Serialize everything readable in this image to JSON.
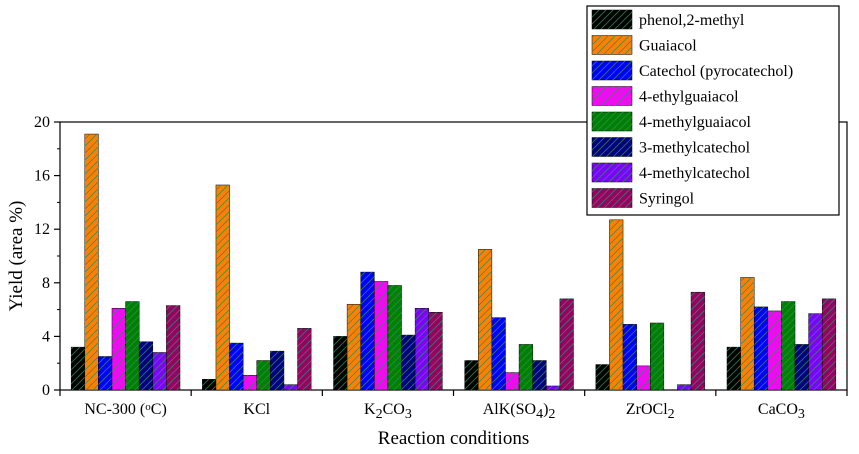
{
  "chart_data": {
    "type": "bar",
    "xlabel": "Reaction conditions",
    "ylabel": "Yield (area %)",
    "ylim": [
      0,
      20
    ],
    "yticks": [
      0,
      4,
      8,
      12,
      16,
      20
    ],
    "grid": false,
    "legend_position": "top-right",
    "categories": [
      "NC-300 (°C)",
      "KCl",
      "K2CO3",
      "AlK(SO4)2",
      "ZrOCl2",
      "CaCO3"
    ],
    "category_labels": [
      [
        {
          "t": "NC-300 (",
          "s": 0
        },
        {
          "t": "o",
          "s": 1
        },
        {
          "t": "C)",
          "s": 0
        }
      ],
      [
        {
          "t": "KCl",
          "s": 0
        }
      ],
      [
        {
          "t": "K",
          "s": 0
        },
        {
          "t": "2",
          "s": -1
        },
        {
          "t": "CO",
          "s": 0
        },
        {
          "t": "3",
          "s": -1
        }
      ],
      [
        {
          "t": "AlK(SO",
          "s": 0
        },
        {
          "t": "4",
          "s": -1
        },
        {
          "t": ")",
          "s": 0
        },
        {
          "t": "2",
          "s": -1
        }
      ],
      [
        {
          "t": "ZrOCl",
          "s": 0
        },
        {
          "t": "2",
          "s": -1
        }
      ],
      [
        {
          "t": "CaCO",
          "s": 0
        },
        {
          "t": "3",
          "s": -1
        }
      ]
    ],
    "series": [
      {
        "name": "phenol,2-methyl",
        "color": "#000000",
        "values": [
          3.2,
          0.8,
          4.0,
          2.2,
          1.9,
          3.2
        ]
      },
      {
        "name": "Guaiacol",
        "color": "#ff8000",
        "values": [
          19.1,
          15.3,
          6.4,
          10.5,
          12.7,
          8.4
        ]
      },
      {
        "name": "Catechol (pyrocatechol)",
        "color": "#0000ff",
        "values": [
          2.5,
          3.5,
          8.8,
          5.4,
          4.9,
          6.2
        ]
      },
      {
        "name": "4-ethylguaiacol",
        "color": "#ff00ff",
        "values": [
          6.1,
          1.1,
          8.1,
          1.3,
          1.8,
          5.9
        ]
      },
      {
        "name": "4-methylguaiacol",
        "color": "#008000",
        "values": [
          6.6,
          2.2,
          7.8,
          3.4,
          5.0,
          6.6
        ]
      },
      {
        "name": "3-methylcatechol",
        "color": "#000080",
        "values": [
          3.6,
          2.9,
          4.1,
          2.2,
          0,
          3.4
        ]
      },
      {
        "name": "4-methylcatechol",
        "color": "#8000ff",
        "values": [
          2.8,
          0.4,
          6.1,
          0.3,
          0.4,
          5.7
        ]
      },
      {
        "name": "Syringol",
        "color": "#990066",
        "values": [
          6.3,
          4.6,
          5.8,
          6.8,
          7.3,
          6.8
        ]
      }
    ]
  }
}
